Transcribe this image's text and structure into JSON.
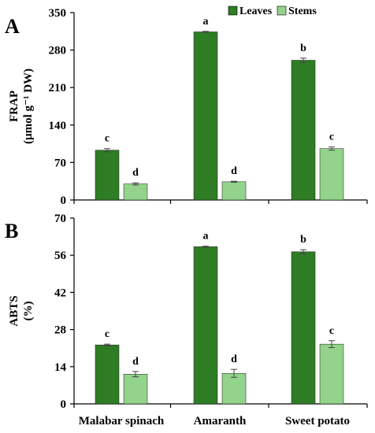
{
  "colors": {
    "leaves": "#2e7d24",
    "stems": "#93d38b",
    "axis": "#000000",
    "error": "#444444"
  },
  "chart_data": [
    {
      "type": "bar",
      "panel": "A",
      "ylabel": [
        "FRAP",
        "(µmol g⁻¹ DW)"
      ],
      "ylim": [
        0,
        350
      ],
      "yticks": [
        0,
        70,
        140,
        210,
        280,
        350
      ],
      "categories": [
        "Malabar spinach",
        "Amaranth",
        "Sweet potato"
      ],
      "legend": {
        "placement": "top-right",
        "entries": [
          "Leaves",
          "Stems"
        ]
      },
      "series": [
        {
          "name": "Leaves",
          "values": [
            93,
            314,
            261
          ],
          "errors": [
            3,
            1,
            4
          ],
          "labels": [
            "c",
            "a",
            "b"
          ]
        },
        {
          "name": "Stems",
          "values": [
            30,
            34,
            96
          ],
          "errors": [
            2,
            1,
            3
          ],
          "labels": [
            "d",
            "d",
            "c"
          ]
        }
      ]
    },
    {
      "type": "bar",
      "panel": "B",
      "ylabel": [
        "ABTS",
        "(%)"
      ],
      "ylim": [
        0,
        70
      ],
      "yticks": [
        0,
        14,
        28,
        42,
        56,
        70
      ],
      "categories": [
        "Malabar spinach",
        "Amaranth",
        "Sweet potato"
      ],
      "series": [
        {
          "name": "Leaves",
          "values": [
            22.2,
            59.2,
            57.3
          ],
          "errors": [
            0.3,
            0.2,
            0.8
          ],
          "labels": [
            "c",
            "a",
            "b"
          ]
        },
        {
          "name": "Stems",
          "values": [
            11.2,
            11.5,
            22.5
          ],
          "errors": [
            1.0,
            1.5,
            1.3
          ],
          "labels": [
            "d",
            "d",
            "c"
          ]
        }
      ]
    }
  ]
}
